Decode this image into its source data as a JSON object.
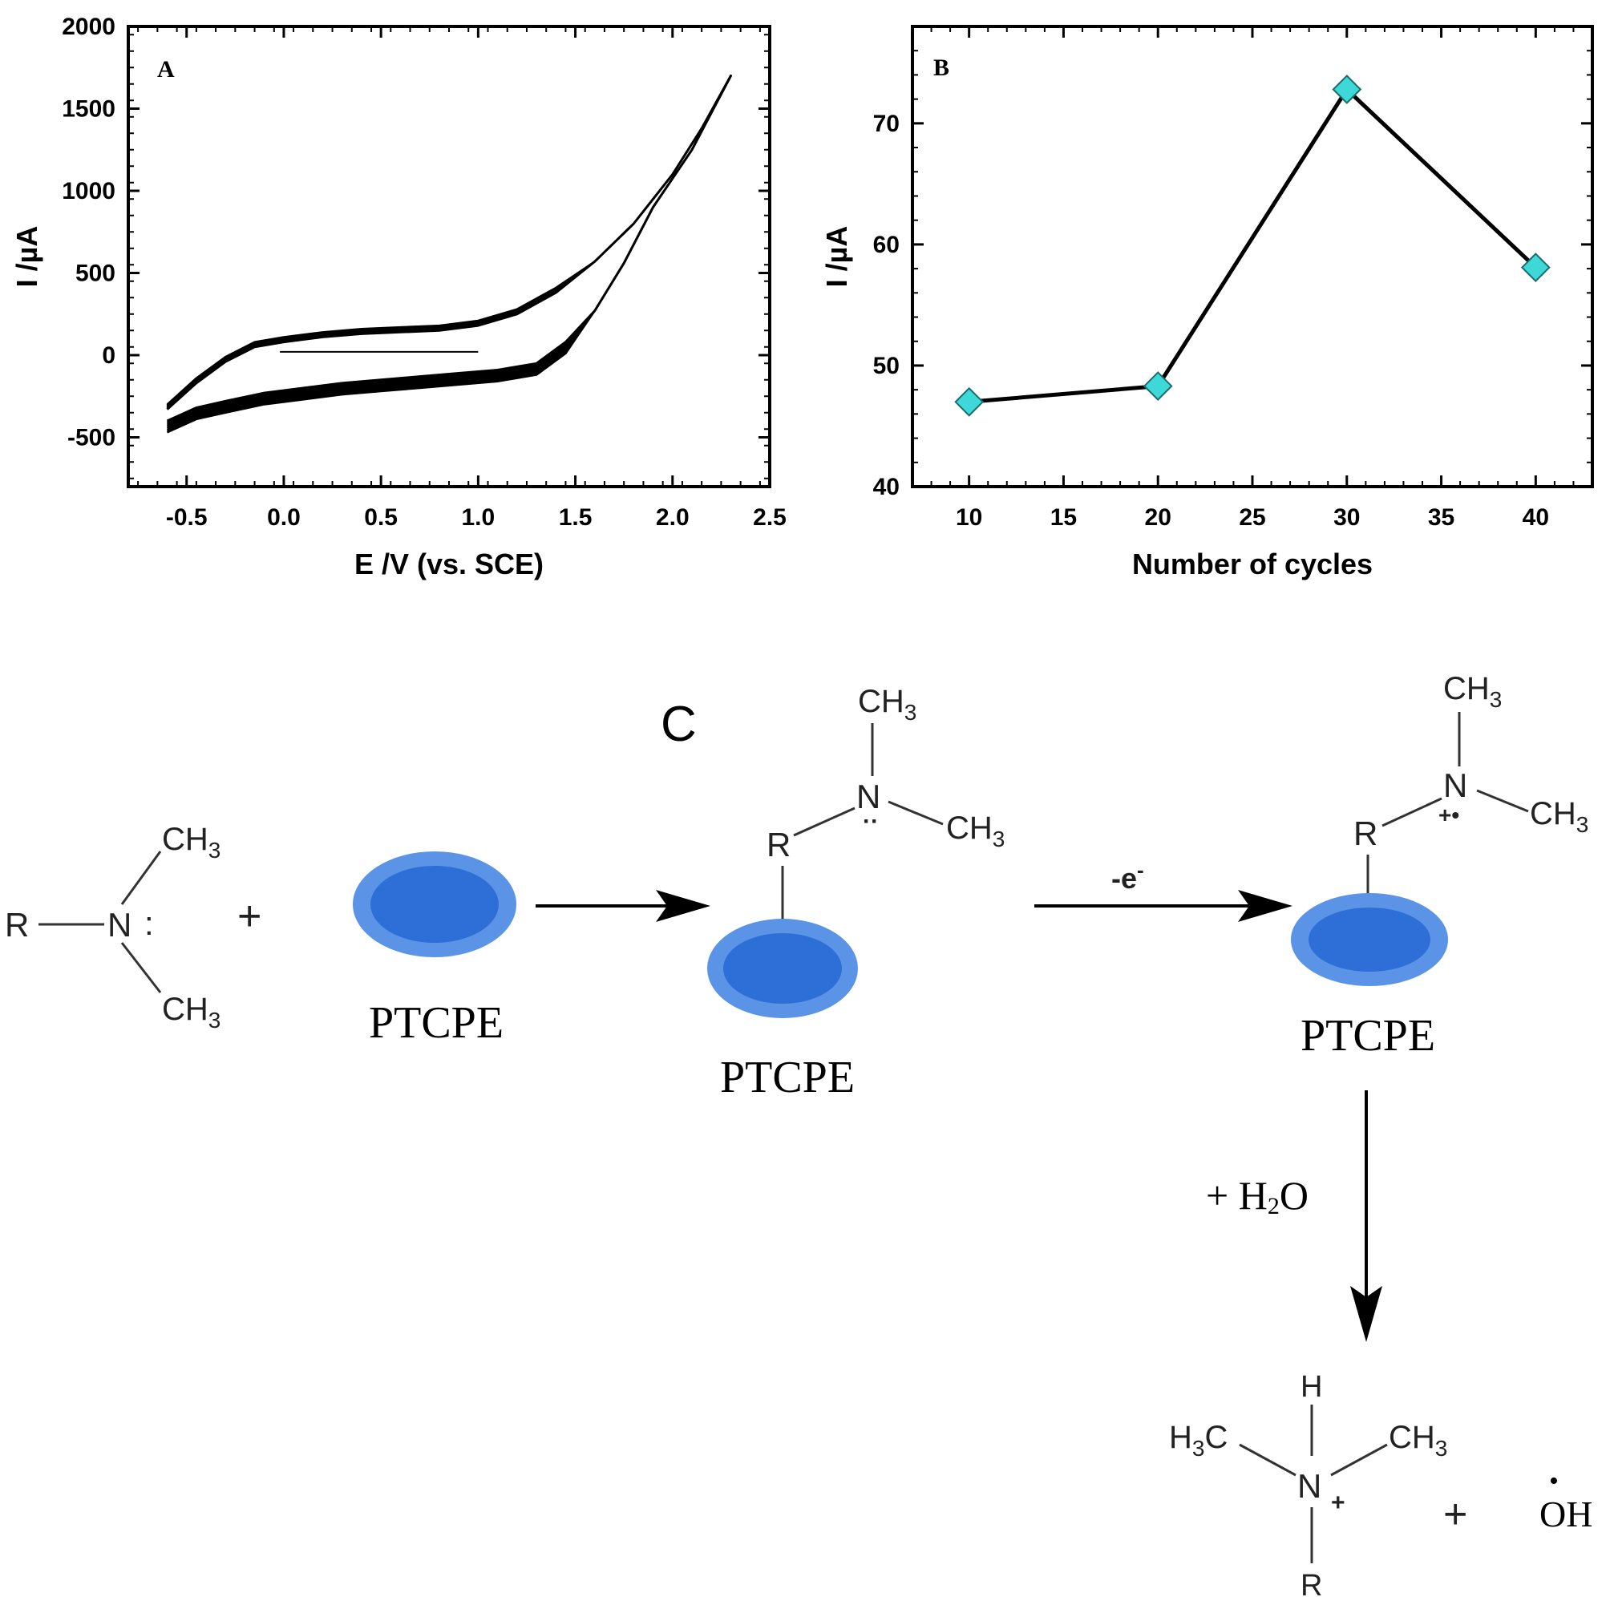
{
  "chart_data": [
    {
      "panel": "A",
      "type": "line",
      "xlabel": "E /V (vs. SCE)",
      "ylabel": "I /µA",
      "xlim": [
        -0.8,
        2.5
      ],
      "ylim": [
        -800,
        2000
      ],
      "xticks": [
        -0.5,
        0.0,
        0.5,
        1.0,
        1.5,
        2.0,
        2.5
      ],
      "xtick_labels": [
        "-0.5",
        "0.0",
        "0.5",
        "1.0",
        "1.5",
        "2.0",
        "2.5"
      ],
      "yticks": [
        -500,
        0,
        500,
        1000,
        1500,
        2000
      ],
      "ytick_labels": [
        "-500",
        "0",
        "500",
        "1000",
        "1500",
        "2000"
      ],
      "curve_count": 10,
      "anodic_branch": {
        "x": [
          -0.6,
          -0.45,
          -0.3,
          -0.15,
          0.0,
          0.2,
          0.4,
          0.6,
          0.8,
          1.0,
          1.2,
          1.4,
          1.6,
          1.8,
          2.0,
          2.15,
          2.3
        ],
        "y": [
          -330,
          -170,
          -40,
          50,
          80,
          110,
          130,
          140,
          150,
          180,
          250,
          380,
          570,
          800,
          1100,
          1380,
          1700
        ]
      },
      "cathodic_branch": {
        "x": [
          2.3,
          2.1,
          1.9,
          1.75,
          1.6,
          1.45,
          1.3,
          1.1,
          0.9,
          0.7,
          0.5,
          0.3,
          0.1,
          -0.1,
          -0.3,
          -0.45,
          -0.6
        ],
        "y": [
          1700,
          1250,
          900,
          560,
          270,
          80,
          -50,
          -90,
          -110,
          -130,
          -150,
          -170,
          -200,
          -230,
          -280,
          -320,
          -400
        ]
      },
      "grid": false,
      "legend": "none"
    },
    {
      "panel": "B",
      "type": "line",
      "xlabel": "Number of cycles",
      "ylabel": "I /µA",
      "xlim": [
        7,
        43
      ],
      "ylim": [
        40,
        78
      ],
      "xticks": [
        10,
        15,
        20,
        25,
        30,
        35,
        40
      ],
      "yticks": [
        40,
        50,
        60,
        70
      ],
      "x": [
        10,
        20,
        30,
        40
      ],
      "y": [
        47.0,
        48.3,
        72.8,
        58.1
      ],
      "marker": "diamond",
      "marker_color": "#3fd8d8",
      "line_color": "#000000",
      "grid": false,
      "legend": "none"
    }
  ],
  "scheme": {
    "panel_label": "C",
    "electrode_label": "PTCPE",
    "electron_label": "-e",
    "electron_sup": "-",
    "water_label": "+ H",
    "water_sub": "2",
    "water_tail": "O",
    "plus": "+",
    "r": "R",
    "n": "N",
    "h": "H",
    "ch": "CH",
    "three": "3",
    "h3c_h": "H",
    "h3c_c": "C",
    "lone_pair": ":",
    "radical_cation": "+•",
    "n_plus": "+",
    "oh": "OH",
    "oh_dot": "•",
    "electrode_outer": "#5b93e6",
    "electrode_inner": "#2d6fd6"
  }
}
